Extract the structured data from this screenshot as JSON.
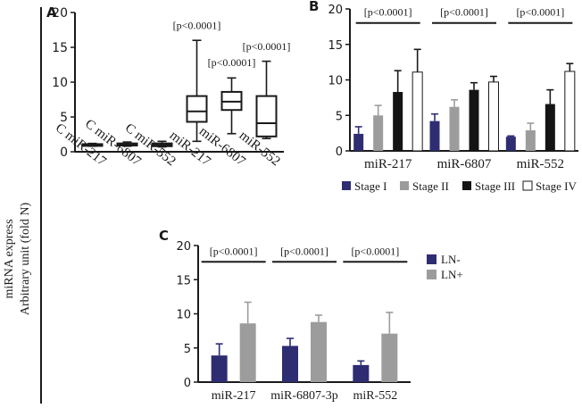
{
  "shared": {
    "ylabel_line1": "miRNA express",
    "ylabel_line2": "Arbitrary unit (fold N)"
  },
  "colors": {
    "stage1": "#2e2d72",
    "stage2": "#9c9c9c",
    "stage3": "#141414",
    "stage4": "#ffffff",
    "ln_neg": "#2e2d72",
    "ln_pos": "#9c9c9c",
    "axis": "#1a1a1a"
  },
  "chart_data": [
    {
      "panel": "A",
      "type": "boxplot",
      "ylim": [
        0,
        20
      ],
      "yticks": [
        0,
        5,
        10,
        15,
        20
      ],
      "categories": [
        "C miR-217",
        "C miR-6807",
        "C miR-552",
        "miR-217",
        "miR-6807",
        "miR-552"
      ],
      "boxes": [
        {
          "min": 0.8,
          "q1": 0.9,
          "median": 1.0,
          "q3": 1.1,
          "max": 1.2
        },
        {
          "min": 0.8,
          "q1": 0.9,
          "median": 1.0,
          "q3": 1.2,
          "max": 1.4
        },
        {
          "min": 0.7,
          "q1": 0.8,
          "median": 1.0,
          "q3": 1.2,
          "max": 1.5
        },
        {
          "min": 1.5,
          "q1": 4.3,
          "median": 5.8,
          "q3": 8.0,
          "max": 16.0
        },
        {
          "min": 2.6,
          "q1": 6.0,
          "median": 7.2,
          "q3": 8.6,
          "max": 10.6
        },
        {
          "min": 1.9,
          "q1": 2.2,
          "median": 4.1,
          "q3": 8.0,
          "max": 13.0
        }
      ],
      "annotations": [
        {
          "text": "[p<0.0001]",
          "category": 3,
          "y": 17.6
        },
        {
          "text": "[p<0.0001]",
          "category": 4,
          "y": 12.3
        },
        {
          "text": "[p<0.0001]",
          "category": 5,
          "y": 14.6
        }
      ]
    },
    {
      "panel": "B",
      "type": "bar",
      "ylim": [
        0,
        20
      ],
      "yticks": [
        0,
        5,
        10,
        15,
        20
      ],
      "categories": [
        "miR-217",
        "miR-6807",
        "miR-552"
      ],
      "series": [
        {
          "name": "Stage I",
          "values": [
            2.4,
            4.2,
            2.0
          ],
          "errors": [
            1.0,
            1.0,
            0.1
          ]
        },
        {
          "name": "Stage II",
          "values": [
            5.0,
            6.2,
            2.9
          ],
          "errors": [
            1.4,
            1.0,
            1.0
          ]
        },
        {
          "name": "Stage III",
          "values": [
            8.3,
            8.6,
            6.6
          ],
          "errors": [
            3.0,
            1.0,
            2.0
          ]
        },
        {
          "name": "Stage IV",
          "values": [
            11.1,
            9.7,
            11.2
          ],
          "errors": [
            3.2,
            0.8,
            1.1
          ]
        }
      ],
      "annotations": [
        {
          "text": "[p<0.0001]",
          "category": 0,
          "y": 18.4
        },
        {
          "text": "[p<0.0001]",
          "category": 1,
          "y": 18.4
        },
        {
          "text": "[p<0.0001]",
          "category": 2,
          "y": 18.4
        }
      ]
    },
    {
      "panel": "C",
      "type": "bar",
      "ylim": [
        0,
        20
      ],
      "yticks": [
        0,
        5,
        10,
        15,
        20
      ],
      "categories": [
        "miR-217",
        "miR-6807-3p",
        "miR-552"
      ],
      "series": [
        {
          "name": "LN-",
          "values": [
            3.9,
            5.3,
            2.5
          ],
          "errors": [
            1.7,
            1.1,
            0.6
          ]
        },
        {
          "name": "LN+",
          "values": [
            8.6,
            8.8,
            7.1
          ],
          "errors": [
            3.1,
            1.0,
            3.1
          ]
        }
      ],
      "annotations": [
        {
          "text": "[p<0.0001]",
          "category": 0,
          "y": 18.0
        },
        {
          "text": "[p<0.0001]",
          "category": 1,
          "y": 18.0
        },
        {
          "text": "[p<0.0001]",
          "category": 2,
          "y": 18.0
        }
      ]
    }
  ]
}
